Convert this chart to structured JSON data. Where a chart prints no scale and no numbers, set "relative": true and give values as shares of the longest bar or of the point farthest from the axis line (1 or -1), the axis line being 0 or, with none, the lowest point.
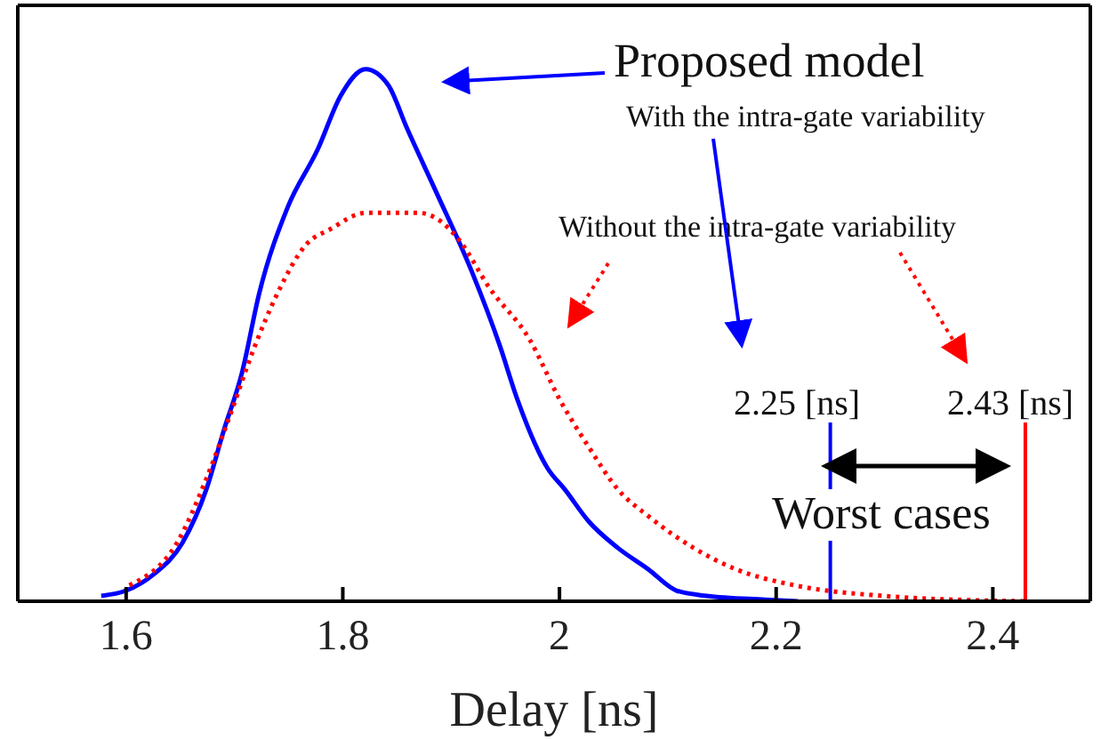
{
  "chart_data": {
    "type": "line",
    "xlabel": "Delay [ns]",
    "relative": true,
    "xlim": [
      1.5,
      2.49
    ],
    "xticks": [
      1.6,
      1.8,
      2,
      2.2,
      2.4
    ],
    "grid": false,
    "legend": false,
    "marker": "none",
    "series": [
      {
        "color": "#0000ff",
        "line_style": "solid",
        "x": [
          1.577,
          1.6,
          1.625,
          1.652,
          1.674,
          1.69,
          1.707,
          1.723,
          1.749,
          1.777,
          1.798,
          1.821,
          1.842,
          1.859,
          1.886,
          1.919,
          1.945,
          1.961,
          1.989,
          2.005,
          2.027,
          2.054,
          2.082,
          2.108,
          2.136,
          2.19,
          2.22
        ],
        "values": [
          0.01,
          0.02,
          0.05,
          0.11,
          0.21,
          0.32,
          0.43,
          0.58,
          0.74,
          0.85,
          0.95,
          1.0,
          0.97,
          0.89,
          0.77,
          0.62,
          0.48,
          0.38,
          0.25,
          0.21,
          0.15,
          0.1,
          0.06,
          0.02,
          0.01,
          0.003,
          0
        ]
      },
      {
        "color": "#ff0000",
        "line_style": "dotted",
        "x": [
          1.603,
          1.647,
          1.674,
          1.696,
          1.717,
          1.74,
          1.766,
          1.789,
          1.821,
          1.87,
          1.886,
          1.907,
          1.935,
          1.973,
          2.0,
          2.027,
          2.054,
          2.082,
          2.124,
          2.163,
          2.217,
          2.299,
          2.38,
          2.43
        ],
        "values": [
          0.03,
          0.11,
          0.23,
          0.35,
          0.47,
          0.58,
          0.67,
          0.7,
          0.73,
          0.73,
          0.72,
          0.68,
          0.59,
          0.49,
          0.38,
          0.29,
          0.21,
          0.16,
          0.1,
          0.06,
          0.03,
          0.01,
          0.002,
          0
        ]
      }
    ],
    "ref_lines": [
      {
        "axis": "x",
        "value": 2.25,
        "label": "2.25 [ns]",
        "color": "#0000ff"
      },
      {
        "axis": "x",
        "value": 2.43,
        "label": "2.43 [ns]",
        "color": "#ff0000"
      }
    ],
    "annotations": [
      "Proposed model",
      "With the intra-gate variability",
      "Without the intra-gate variability",
      "Worst cases"
    ]
  }
}
